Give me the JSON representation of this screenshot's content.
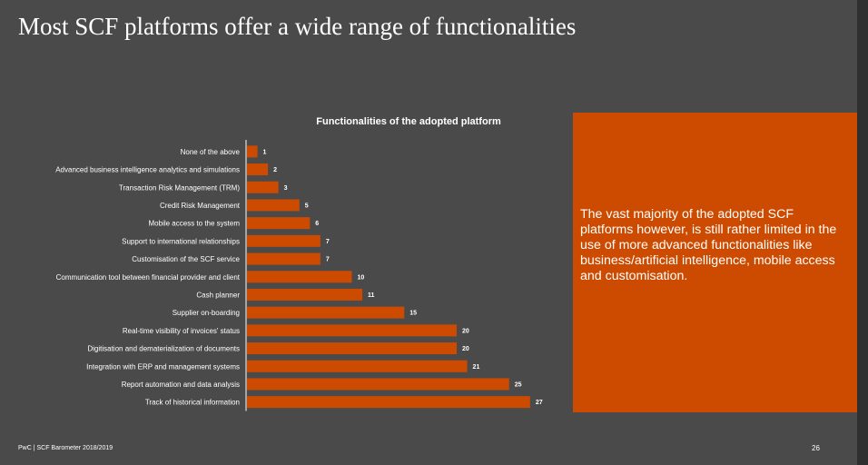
{
  "slide": {
    "title": "Most SCF platforms offer a wide range of functionalities",
    "callout": "The vast majority of the adopted SCF platforms however, is still rather limited in the use of more advanced functionalities like business/artificial intelligence, mobile access and customisation.",
    "footer_source": "PwC | SCF Barometer 2018/2019",
    "page_number": "26"
  },
  "colors": {
    "background": "#4a4a4a",
    "bar": "#cc4b00",
    "callout_box": "#cc4b00",
    "text": "#ffffff"
  },
  "chart_data": {
    "type": "bar",
    "orientation": "horizontal",
    "title": "Functionalities of the adopted platform",
    "categories": [
      "None of the above",
      "Advanced business intelligence analytics and simulations",
      "Transaction Risk Management (TRM)",
      "Credit Risk Management",
      "Mobile access to the system",
      "Support to international relationships",
      "Customisation of the SCF service",
      "Communication tool between financial provider and client",
      "Cash planner",
      "Supplier on-boarding",
      "Real-time visibility of invoices' status",
      "Digitisation and dematerialization of documents",
      "Integration with ERP and management systems",
      "Report automation and data analysis",
      "Track of historical information"
    ],
    "values": [
      1,
      2,
      3,
      5,
      6,
      7,
      7,
      10,
      11,
      15,
      20,
      20,
      21,
      25,
      27
    ],
    "data_labels": true,
    "grid": false,
    "legend": "none"
  }
}
